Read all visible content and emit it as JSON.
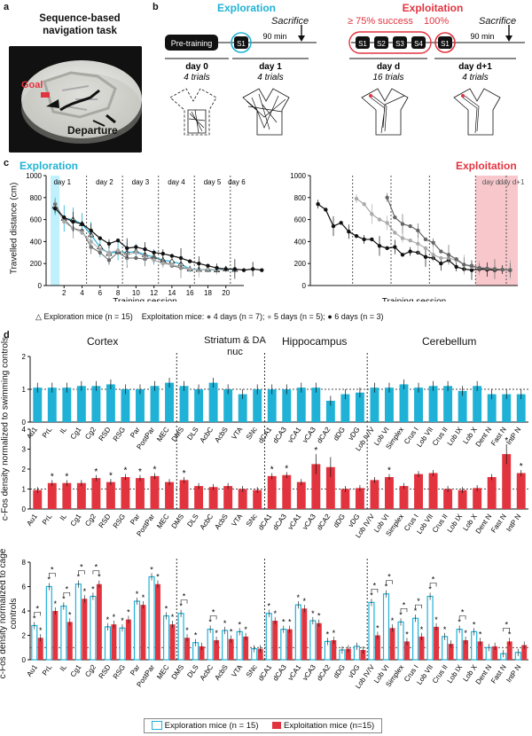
{
  "panel_labels": {
    "a": "a",
    "b": "b",
    "c": "c",
    "d": "d"
  },
  "panel_a": {
    "title": "Sequence-based navigation task",
    "goal_label": "Goal",
    "departure_label": "Departure"
  },
  "panel_b": {
    "exploration_title": "Exploration",
    "exploitation_title": "Exploitation",
    "success_label": "≥ 75% success",
    "hundred_label": "100%",
    "sacrifice_label": "Sacrifice",
    "min_label": "90 min",
    "pretraining_label": "Pre-training",
    "s_labels": [
      "S1",
      "S2",
      "S3",
      "S4"
    ],
    "days": [
      {
        "day": "day 0",
        "trials": "4 trials"
      },
      {
        "day": "day 1",
        "trials": "4 trials"
      },
      {
        "day": "day d",
        "trials": "16 trials"
      },
      {
        "day": "day d+1",
        "trials": "4 trials"
      }
    ]
  },
  "panel_c": {
    "exploration_title": "Exploration",
    "exploitation_title": "Exploitation",
    "ylabel": "Travelled distance (cm)",
    "xlabel": "Training session",
    "yticks": [
      "0",
      "200",
      "400",
      "600",
      "800",
      "1000"
    ],
    "left_xticks": [
      "2",
      "4",
      "6",
      "8",
      "10",
      "12",
      "14",
      "16",
      "18",
      "20"
    ],
    "left_day_labels": [
      "day 1",
      "day 2",
      "day 3",
      "day 4",
      "day 5",
      "day 6"
    ],
    "right_day_labels": [
      "day d",
      "day d+1"
    ],
    "legend": {
      "explo": "Exploration mice (n = 15)",
      "explo_prefix": "Exploitation mice:",
      "d4": "4 days (n = 7);",
      "d5": "5 days (n = 5);",
      "d6": "6 days (n = 3)"
    }
  },
  "panel_d": {
    "ylabel_top": "c-Fos density normalized to swimming controls",
    "ylabel_bottom": "c-Fos density normalized to cage controls",
    "group_labels": [
      "Cortex",
      "Striatum & DA nuc",
      "Hippocampus",
      "Cerebellum"
    ],
    "regions": [
      "Au1",
      "PrL",
      "IL",
      "Cg1",
      "Cg2",
      "RSD",
      "RSG",
      "Par",
      "PostPar",
      "MEC",
      "DMS",
      "DLS",
      "AcbC",
      "AcbS",
      "VTA",
      "SNc",
      "dCA1",
      "dCA3",
      "vCA1",
      "vCA3",
      "dCA2",
      "dDG",
      "vDG",
      "Lob IV/V",
      "Lob VI",
      "Simplex",
      "Crus I",
      "Lob VII",
      "Crus II",
      "Lob IX",
      "Lob X",
      "Dent N",
      "Fast N",
      "IntP N"
    ],
    "legend": {
      "explo": "Exploration mice (n = 15)",
      "exploit": "Exploitation mice (n=15)"
    },
    "star": "*"
  },
  "colors": {
    "cyan": "#1fb2d6",
    "red": "#e2343f",
    "pink": "#f7c7cc",
    "lightcyan": "#bff0fb"
  },
  "chart_data": [
    {
      "type": "line",
      "title": "Exploration",
      "xlabel": "Training session",
      "ylabel": "Travelled distance (cm)",
      "ylim": [
        0,
        1000
      ],
      "series": [
        {
          "name": "Exploration mice (n = 15)",
          "x": [
            1,
            2,
            3,
            4,
            5,
            6,
            7,
            8,
            9,
            10,
            11,
            12,
            13,
            14,
            15,
            16,
            17,
            18,
            19,
            20,
            21
          ],
          "values": [
            720,
            610,
            600,
            560,
            460,
            350,
            290,
            310,
            300,
            310,
            280,
            260,
            230,
            220,
            195,
            150,
            145,
            145,
            140,
            150,
            145
          ],
          "err": [
            80,
            120,
            110,
            100,
            120,
            90,
            100,
            80,
            90,
            70,
            80,
            70,
            60,
            50,
            40,
            30,
            25,
            25,
            20,
            30,
            20
          ]
        },
        {
          "name": "4 days (n = 7)",
          "x": [
            1,
            2,
            3,
            4,
            5,
            6,
            7,
            8,
            9,
            10,
            11,
            12,
            13,
            14,
            15,
            16
          ],
          "values": [
            740,
            600,
            520,
            500,
            350,
            300,
            230,
            300,
            250,
            250,
            240,
            260,
            220,
            180,
            160,
            150
          ]
        },
        {
          "name": "5 days (n = 5)",
          "x": [
            1,
            2,
            3,
            4,
            5,
            6,
            7,
            8,
            9,
            10,
            11,
            12,
            13,
            14,
            15,
            16,
            17,
            18,
            19,
            20
          ],
          "values": [
            720,
            580,
            520,
            480,
            400,
            330,
            300,
            320,
            280,
            300,
            270,
            230,
            200,
            190,
            170,
            150,
            140,
            150,
            140,
            145
          ]
        },
        {
          "name": "6 days (n = 3)",
          "x": [
            1,
            2,
            3,
            4,
            5,
            6,
            7,
            8,
            9,
            10,
            11,
            12,
            13,
            14,
            15,
            16,
            17,
            18,
            19,
            20,
            21,
            22,
            23,
            24
          ],
          "values": [
            700,
            620,
            580,
            560,
            500,
            430,
            380,
            410,
            340,
            350,
            330,
            300,
            290,
            270,
            250,
            220,
            200,
            180,
            160,
            150,
            150,
            140,
            150,
            140
          ]
        }
      ]
    },
    {
      "type": "line",
      "title": "Exploitation",
      "xlabel": "Training session",
      "ylim": [
        0,
        1000
      ],
      "series": [
        {
          "name": "6 days (n = 3)",
          "x": [
            1,
            2,
            3,
            4,
            5,
            6,
            7,
            8,
            9,
            10,
            11,
            12,
            13,
            14,
            15,
            16,
            17,
            18,
            19,
            20,
            21,
            22,
            23,
            24,
            25,
            26
          ],
          "values": [
            740,
            690,
            540,
            570,
            490,
            450,
            420,
            420,
            360,
            340,
            350,
            280,
            310,
            300,
            260,
            250,
            200,
            230,
            170,
            150,
            140,
            150,
            145,
            140,
            145,
            140
          ]
        },
        {
          "name": "5 days (n = 5)",
          "x": [
            6,
            7,
            8,
            9,
            10,
            11,
            12,
            13,
            14,
            15,
            16,
            17,
            18,
            19,
            20,
            21,
            22,
            23,
            24,
            25,
            26
          ],
          "values": [
            790,
            740,
            650,
            600,
            570,
            480,
            430,
            410,
            380,
            340,
            280,
            250,
            250,
            230,
            190,
            170,
            160,
            155,
            150,
            145,
            145
          ]
        },
        {
          "name": "4 days (n = 7)",
          "x": [
            10,
            11,
            12,
            13,
            14,
            15,
            16,
            17,
            18,
            19,
            20,
            21,
            22,
            23,
            24,
            25,
            26
          ],
          "values": [
            800,
            620,
            560,
            540,
            500,
            420,
            390,
            310,
            280,
            240,
            190,
            180,
            160,
            155,
            150,
            145,
            140
          ]
        }
      ]
    },
    {
      "type": "bar",
      "ylabel": "c-Fos density normalized to swimming controls",
      "ylim": [
        0,
        2
      ],
      "series": [
        {
          "name": "Exploration mice (n = 15)",
          "values": [
            1.05,
            1.05,
            1.05,
            1.1,
            1.1,
            1.15,
            1.0,
            1.0,
            1.1,
            1.2,
            1.1,
            1.0,
            1.2,
            1.0,
            0.85,
            1.0,
            1.0,
            1.0,
            1.05,
            1.05,
            0.65,
            0.85,
            0.9,
            1.05,
            1.05,
            1.15,
            1.05,
            1.1,
            1.1,
            0.95,
            1.1,
            0.85,
            0.85,
            0.85
          ]
        }
      ]
    },
    {
      "type": "bar",
      "ylabel": "c-Fos density normalized to swimming controls",
      "ylim": [
        0,
        4
      ],
      "series": [
        {
          "name": "Exploitation mice (n=15)",
          "values": [
            0.95,
            1.3,
            1.3,
            1.3,
            1.55,
            1.35,
            1.6,
            1.55,
            1.65,
            1.35,
            1.45,
            1.15,
            1.1,
            1.15,
            1.0,
            0.95,
            1.65,
            1.7,
            1.35,
            2.25,
            2.1,
            1.0,
            1.05,
            1.45,
            1.6,
            1.15,
            1.75,
            1.8,
            1.0,
            0.95,
            1.05,
            1.6,
            2.75,
            1.8
          ]
        }
      ]
    },
    {
      "type": "bar",
      "ylabel": "c-Fos density normalized to cage controls",
      "ylim": [
        0,
        8
      ],
      "series": [
        {
          "name": "Exploration mice (n = 15)",
          "values": [
            2.8,
            6.0,
            4.4,
            6.2,
            5.2,
            2.7,
            2.6,
            4.8,
            6.8,
            3.6,
            3.8,
            1.4,
            2.5,
            2.4,
            2.3,
            0.9,
            3.8,
            2.5,
            4.5,
            3.2,
            1.5,
            0.8,
            1.1,
            4.7,
            5.4,
            3.1,
            3.4,
            5.2,
            1.9,
            2.5,
            2.3,
            1.0,
            0.5,
            0.6
          ]
        },
        {
          "name": "Exploitation mice (n=15)",
          "values": [
            1.8,
            4.0,
            3.1,
            5.0,
            6.2,
            2.9,
            3.3,
            4.5,
            6.2,
            2.9,
            1.8,
            1.1,
            1.6,
            1.7,
            1.9,
            0.9,
            3.2,
            2.5,
            4.2,
            3.0,
            1.6,
            0.9,
            0.8,
            2.0,
            2.6,
            1.5,
            1.9,
            2.7,
            1.3,
            1.6,
            1.5,
            1.1,
            1.5,
            1.2
          ]
        }
      ]
    }
  ]
}
